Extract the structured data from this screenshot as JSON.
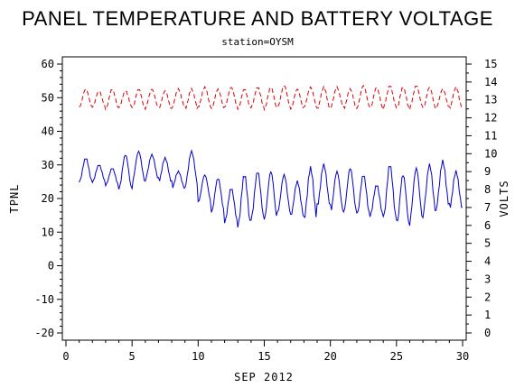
{
  "chart_data": {
    "type": "line",
    "title": "PANEL TEMPERATURE AND BATTERY VOLTAGE",
    "subtitle": "station=OYSM",
    "xlabel": "SEP 2012",
    "ylabel_left": "TPNL",
    "ylabel_right": "VOLTS",
    "xlim": [
      0,
      30
    ],
    "x_ticks": [
      "0",
      "5",
      "10",
      "15",
      "20",
      "25",
      "30"
    ],
    "ylim_left": [
      -20,
      60
    ],
    "y_ticks_left": [
      "-20",
      "-10",
      "0",
      "10",
      "20",
      "30",
      "40",
      "50",
      "60"
    ],
    "ylim_right": [
      0,
      15
    ],
    "y_ticks_right": [
      "0",
      "1",
      "2",
      "3",
      "4",
      "5",
      "6",
      "7",
      "8",
      "9",
      "10",
      "11",
      "12",
      "13",
      "14",
      "15"
    ],
    "grid": false,
    "series": [
      {
        "axis": "left",
        "color": "#0000cc",
        "style": "solid",
        "daily_peaks": [
          32,
          30,
          29,
          33,
          34,
          33,
          32,
          28,
          34,
          27,
          26,
          23,
          27,
          28,
          28,
          27,
          25,
          29,
          30,
          28,
          29,
          27,
          24,
          30,
          27,
          29,
          30,
          31,
          28,
          20
        ],
        "daily_troughs": [
          25,
          25,
          24,
          23,
          25,
          26,
          25,
          23,
          24,
          19,
          16,
          13,
          12,
          14,
          14,
          16,
          15,
          14,
          18,
          16,
          16,
          15,
          15,
          14,
          12,
          14,
          16,
          18,
          17,
          15
        ],
        "x_start": 1.0,
        "x_end": 30.0
      },
      {
        "axis": "right",
        "color": "#dd0000",
        "style": "dashed",
        "daily_peaks": [
          13.6,
          13.5,
          13.6,
          13.5,
          13.6,
          13.6,
          13.5,
          13.6,
          13.6,
          13.7,
          13.6,
          13.7,
          13.6,
          13.7,
          13.7,
          13.8,
          13.6,
          13.7,
          13.7,
          13.7,
          13.6,
          13.8,
          13.7,
          13.8,
          13.7,
          13.8,
          13.7,
          13.6,
          13.7,
          13.3
        ],
        "daily_troughs": [
          12.6,
          12.6,
          12.5,
          12.6,
          12.5,
          12.6,
          12.5,
          12.6,
          12.5,
          12.6,
          12.5,
          12.6,
          12.5,
          12.6,
          12.5,
          12.6,
          12.5,
          12.6,
          12.5,
          12.6,
          12.5,
          12.6,
          12.5,
          12.6,
          12.5,
          12.6,
          12.5,
          12.6,
          12.5,
          12.5
        ],
        "x_start": 1.0,
        "x_end": 30.0
      }
    ]
  }
}
